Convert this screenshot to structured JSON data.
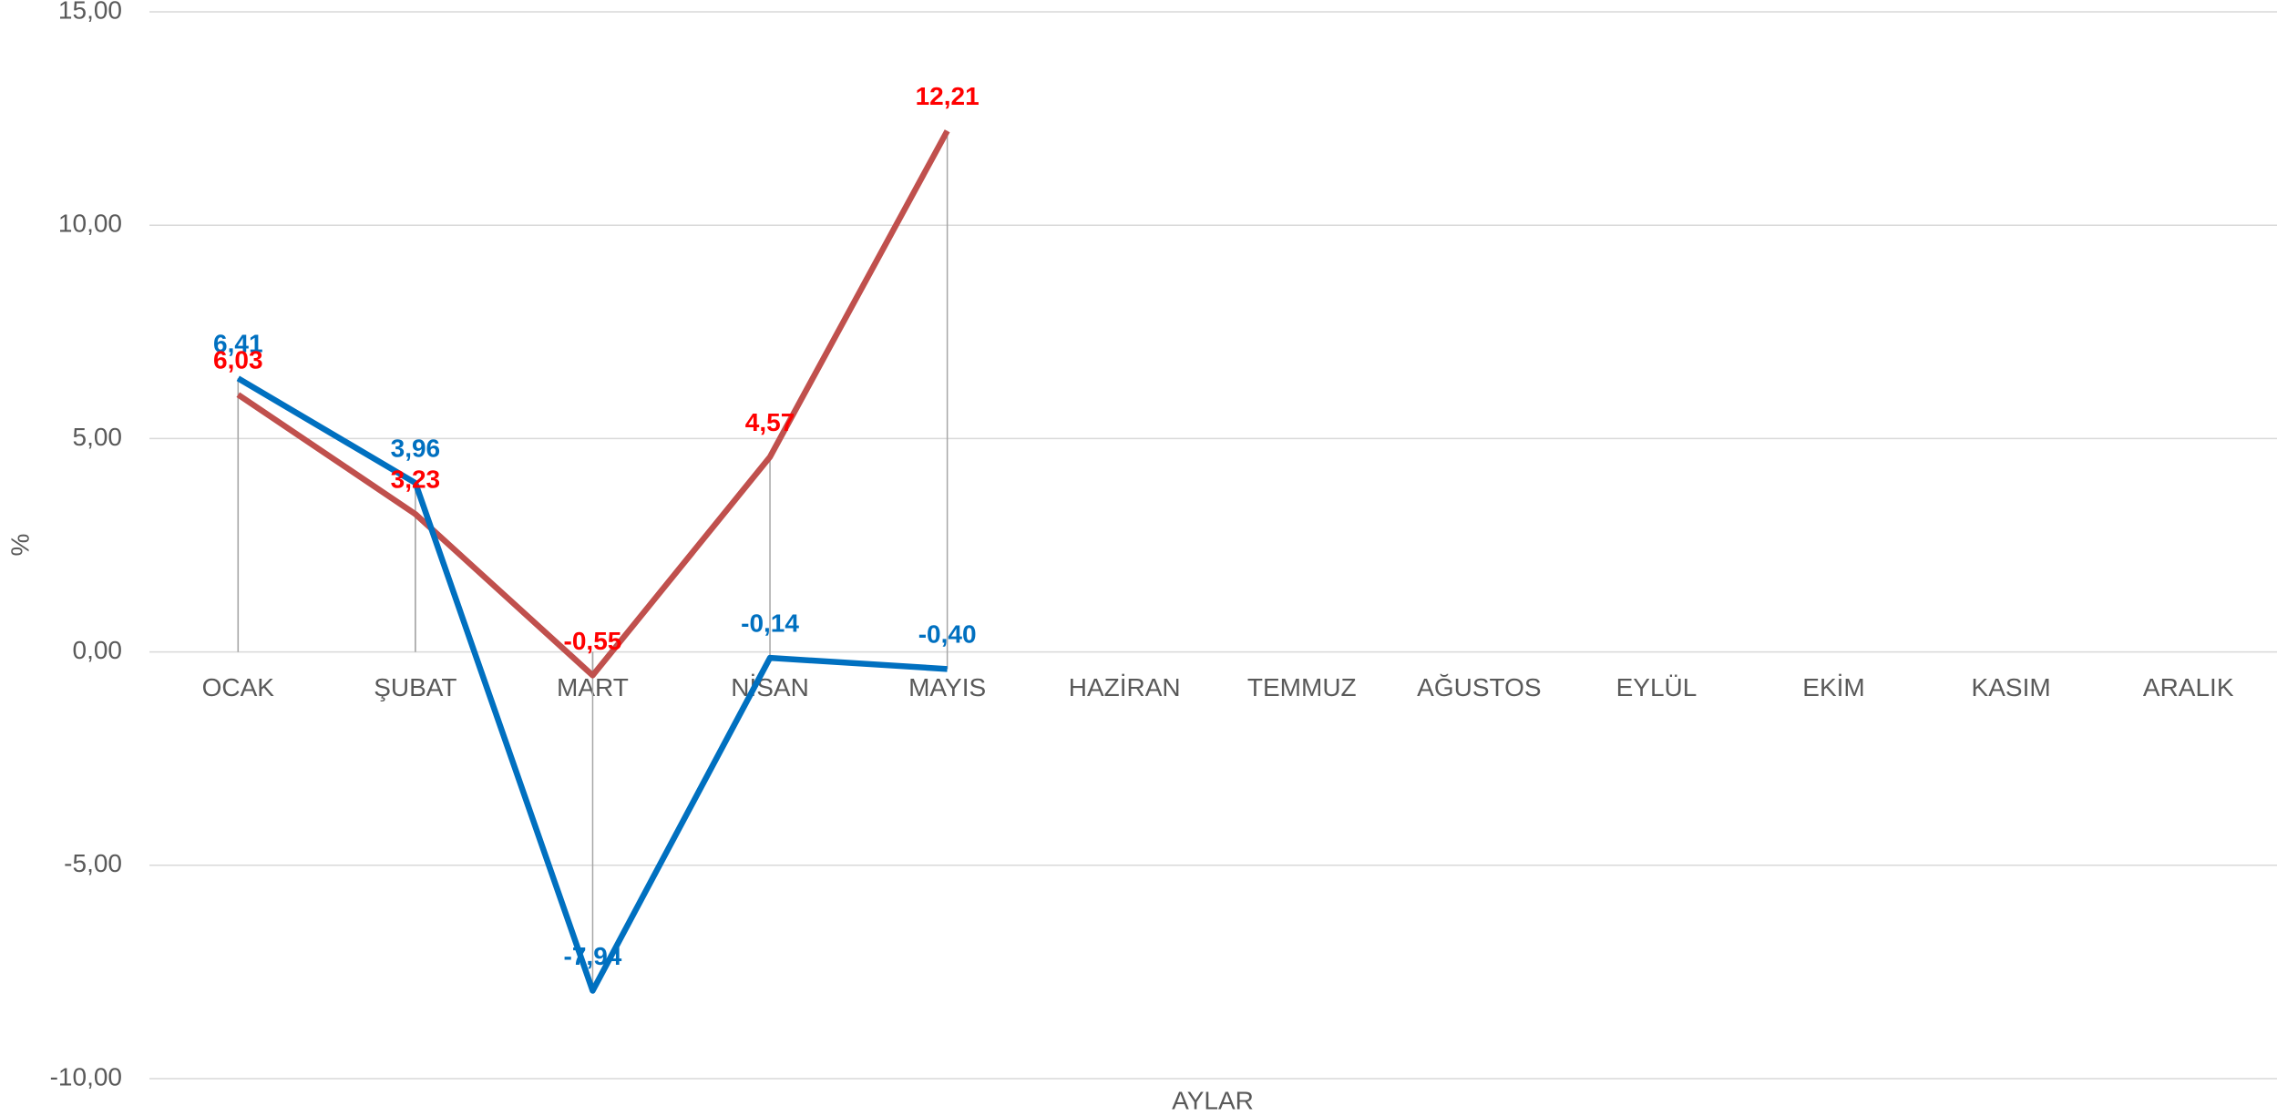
{
  "chart_data": {
    "type": "line",
    "ylabel": "%",
    "xlabel": "AYLAR",
    "categories": [
      "OCAK",
      "ŞUBAT",
      "MART",
      "NİSAN",
      "MAYIS",
      "HAZİRAN",
      "TEMMUZ",
      "AĞUSTOS",
      "EYLÜL",
      "EKİM",
      "KASIM",
      "ARALIK"
    ],
    "series": [
      {
        "color": "#0070c0",
        "label_color": "#0070c0",
        "values": [
          6.41,
          3.96,
          -7.94,
          -0.14,
          -0.4,
          null,
          null,
          null,
          null,
          null,
          null,
          null
        ],
        "value_labels": [
          "6,41",
          "3,96",
          "-7,94",
          "-0,14",
          "-0,40",
          null,
          null,
          null,
          null,
          null,
          null,
          null
        ]
      },
      {
        "color": "#c0504d",
        "label_color": "#ff0000",
        "values": [
          6.03,
          3.23,
          -0.55,
          4.57,
          12.21,
          null,
          null,
          null,
          null,
          null,
          null,
          null
        ],
        "value_labels": [
          "6,03",
          "3,23",
          "-0,55",
          "4,57",
          "12,21",
          null,
          null,
          null,
          null,
          null,
          null,
          null
        ]
      }
    ],
    "ylim": [
      -10,
      15
    ],
    "yticks": [
      {
        "value": -10,
        "label": "-10,00"
      },
      {
        "value": -5,
        "label": "-5,00"
      },
      {
        "value": 0,
        "label": "0,00"
      },
      {
        "value": 5,
        "label": "5,00"
      },
      {
        "value": 10,
        "label": "10,00"
      },
      {
        "value": 15,
        "label": "15,00"
      }
    ],
    "grid": true,
    "drop_lines": true
  }
}
